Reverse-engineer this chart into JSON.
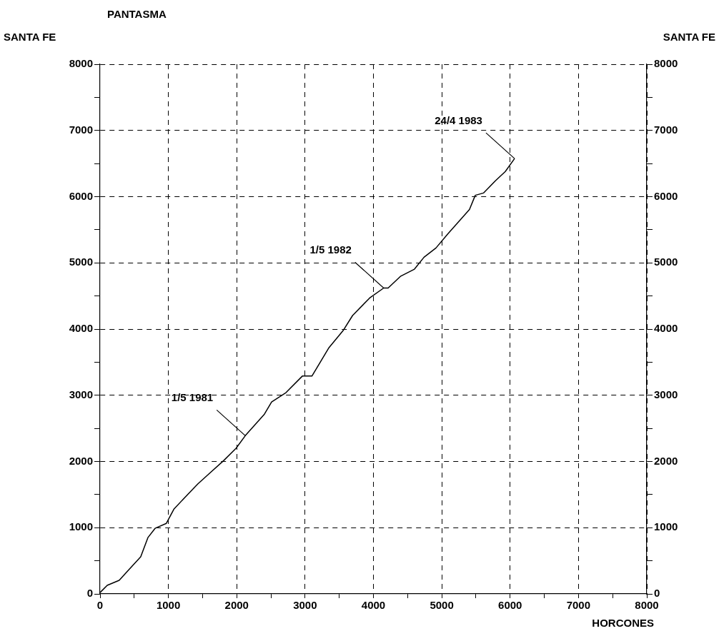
{
  "chart_data": {
    "type": "line",
    "title": "PANTASMA",
    "xlabel": "HORCONES",
    "ylabel": "SANTA FE",
    "y2label": "SANTA FE",
    "x": [
      0,
      105,
      280,
      420,
      595,
      700,
      805,
      970,
      1080,
      1290,
      1430,
      1600,
      1810,
      1990,
      2125,
      2405,
      2510,
      2720,
      2960,
      3100,
      3350,
      3555,
      3695,
      3945,
      4150,
      4215,
      4400,
      4600,
      4740,
      4915,
      5090,
      5405,
      5490,
      5610,
      5785,
      5930,
      6065
    ],
    "series": [
      {
        "color": "#000000",
        "values": [
          20,
          130,
          205,
          365,
          560,
          850,
          990,
          1065,
          1280,
          1510,
          1660,
          1820,
          2015,
          2200,
          2390,
          2715,
          2900,
          3040,
          3290,
          3290,
          3720,
          3975,
          4205,
          4470,
          4620,
          4620,
          4800,
          4905,
          5085,
          5225,
          5440,
          5805,
          6020,
          6055,
          6240,
          6380,
          6575
        ]
      }
    ],
    "xlim": [
      0,
      8000
    ],
    "xticks": [
      0,
      {
        "value": 500,
        "label": null
      },
      1000,
      {
        "value": 1500,
        "label": null
      },
      2000,
      {
        "value": 2500,
        "label": null
      },
      3000,
      {
        "value": 3500,
        "label": null
      },
      4000,
      {
        "value": 4500,
        "label": null
      },
      5000,
      {
        "value": 5500,
        "label": null
      },
      6000,
      {
        "value": 6500,
        "label": null
      },
      7000,
      {
        "value": 7500,
        "label": null
      },
      8000
    ],
    "ylim": [
      0,
      8000
    ],
    "yticks": [
      0,
      {
        "value": 500,
        "label": null
      },
      1000,
      {
        "value": 1500,
        "label": null
      },
      2000,
      {
        "value": 2500,
        "label": null
      },
      3000,
      {
        "value": 3500,
        "label": null
      },
      4000,
      {
        "value": 4500,
        "label": null
      },
      5000,
      {
        "value": 5500,
        "label": null
      },
      6000,
      {
        "value": 6500,
        "label": null
      },
      7000,
      {
        "value": 7500,
        "label": null
      },
      8000
    ],
    "y2lim": [
      0,
      8000
    ],
    "y2ticks": [
      0,
      {
        "value": 500,
        "label": null
      },
      1000,
      {
        "value": 1500,
        "label": null
      },
      2000,
      {
        "value": 2500,
        "label": null
      },
      3000,
      {
        "value": 3500,
        "label": null
      },
      4000,
      {
        "value": 4500,
        "label": null
      },
      5000,
      {
        "value": 5500,
        "label": null
      },
      6000,
      {
        "value": 6500,
        "label": null
      },
      7000,
      {
        "value": 7500,
        "label": null
      },
      8000
    ],
    "grid": true,
    "line_style": "solid",
    "marker": "none",
    "legend": false,
    "annotations": [
      {
        "text": "1/5 1981",
        "x": 2125,
        "y": 2390
      },
      {
        "text": "1/5 1982",
        "x": 4150,
        "y": 4620
      },
      {
        "text": "24/4 1983",
        "x": 6065,
        "y": 6575
      }
    ]
  }
}
